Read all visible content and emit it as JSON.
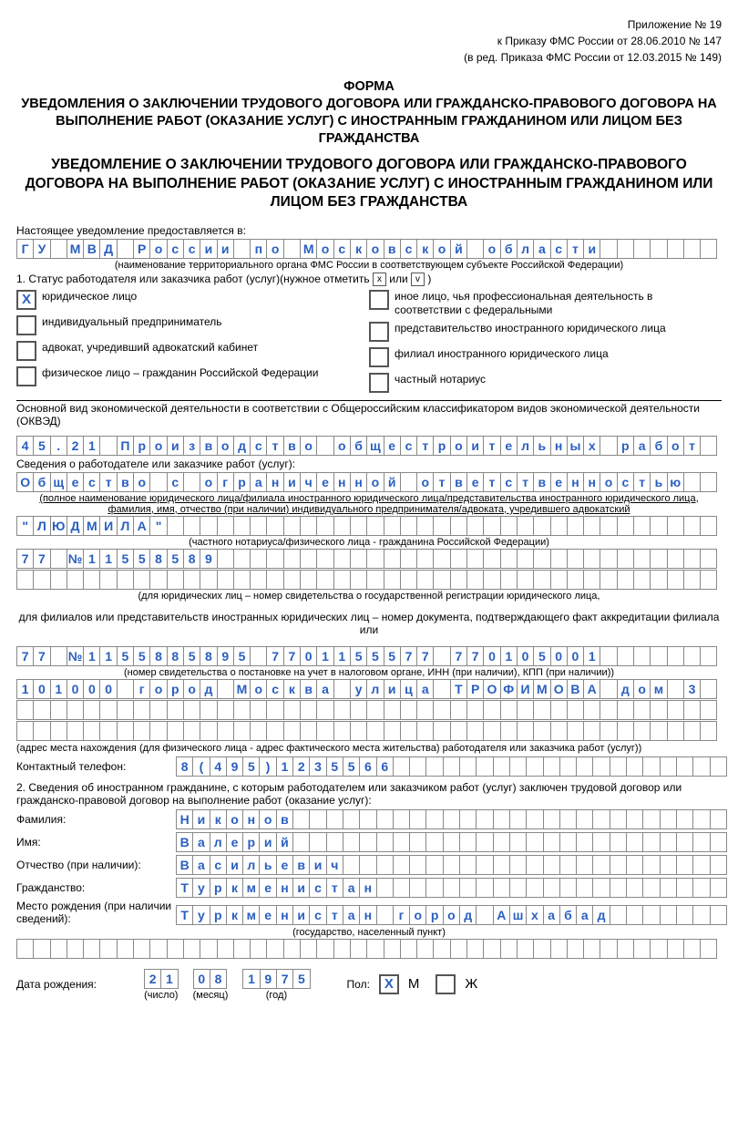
{
  "header": {
    "line1": "Приложение № 19",
    "line2": "к Приказу ФМС России от 28.06.2010 № 147",
    "line3": "(в ред. Приказа ФМС России от 12.03.2015 № 149)"
  },
  "title": {
    "line1": "ФОРМА",
    "line2": "УВЕДОМЛЕНИЯ О ЗАКЛЮЧЕНИИ ТРУДОВОГО ДОГОВОРА ИЛИ ГРАЖДАНСКО-ПРАВОВОГО ДОГОВОРА НА ВЫПОЛНЕНИЕ РАБОТ (ОКАЗАНИЕ УСЛУГ) С ИНОСТРАННЫМ ГРАЖДАНИНОМ ИЛИ ЛИЦОМ БЕЗ ГРАЖДАНСТВА"
  },
  "subtitle": "УВЕДОМЛЕНИЕ О ЗАКЛЮЧЕНИИ ТРУДОВОГО ДОГОВОРА ИЛИ ГРАЖДАНСКО-ПРАВОВОГО ДОГОВОРА НА ВЫПОЛНЕНИЕ РАБОТ (ОКАЗАНИЕ УСЛУГ) С ИНОСТРАННЫМ ГРАЖДАНИНОМ ИЛИ ЛИЦОМ БЕЗ ГРАЖДАНСТВА",
  "intro_label": "Настоящее уведомление предоставляется в:",
  "row_authority": "ГУ МВД России по Московской области",
  "note_authority": "(наименование территориального органа ФМС России в соответствующем субъекте Российской Федерации)",
  "status_prefix": "1. Статус работодателя или заказчика работ (услуг)(нужное отметить ",
  "status_x": "x",
  "status_mid": " или ",
  "status_v": "v",
  "status_suffix": " )",
  "status": {
    "left": [
      {
        "checked": "X",
        "text": "юридическое лицо"
      },
      {
        "checked": "",
        "text": "индивидуальный предприниматель"
      },
      {
        "checked": "",
        "text": "адвокат, учредивший адвокатский кабинет"
      },
      {
        "checked": "",
        "text": "физическое лицо – гражданин Российской Федерации"
      }
    ],
    "right": [
      {
        "checked": "",
        "text": "иное лицо, чья профессиональная деятельность в соответствии с федеральными"
      },
      {
        "checked": "",
        "text": "представительство иностранного юридического лица"
      },
      {
        "checked": "",
        "text": "филиал иностранного юридического лица"
      },
      {
        "checked": "",
        "text": "частный нотариус"
      }
    ]
  },
  "okved_label": "Основной вид экономической деятельности в соответствии с Общероссийским классификатором видов экономической деятельности (ОКВЭД)",
  "row_okved": "45.21 Производство общестроительных работ",
  "employer_label": "Сведения о работодателе или заказчике работ (услуг):",
  "row_employer1": "Общество с ограниченной ответственностью",
  "note_employer1": "(полное наименование юридического лица/филиала иностранного юридического лица/представительства иностранного юридического лица, фамилия, имя, отчество (при наличии) индивидуального предпринимателя/адвоката, учредившего адвокатский",
  "row_employer2": "\"ЛЮДМИЛА\"",
  "note_employer2": "(частного нотариуса/физического лица - гражданина Российской Федерации)",
  "row_regnum": "77 №11558589",
  "row_empty1": "",
  "note_reg": "(для юридических лиц – номер свидетельства о государственной регистрации юридического лица,",
  "note_filial": "для филиалов или представительств иностранных юридических лиц – номер документа, подтверждающего факт аккредитации филиала или",
  "row_inn": "77 №1155885895 7701155577 770105001",
  "note_inn": "(номер свидетельства о постановке на учет в налоговом органе, ИНН (при наличии), КПП (при наличии))",
  "row_addr1": "101000 город Москва улица ТРОФИМОВА дом 3",
  "row_addr2": "",
  "row_addr3": "",
  "note_addr": "(адрес места нахождения (для физического лица - адрес фактического места жительства) работодателя или заказчика работ (услуг))",
  "phone_label": "Контактный телефон:",
  "row_phone": "8(495)1235566",
  "section2_label": "2. Сведения об иностранном гражданине, с которым работодателем или заказчиком работ (услуг) заключен трудовой договор или гражданско-правовой договор на выполнение работ (оказание услуг):",
  "lastname_label": "Фамилия:",
  "row_lastname": "Никонов",
  "firstname_label": "Имя:",
  "row_firstname": "Валерий",
  "middlename_label": "Отчество (при наличии):",
  "row_middlename": "Васильевич",
  "citizenship_label": "Гражданство:",
  "row_citizenship": "Туркменистан",
  "birthplace_label": "Место рождения (при наличии сведений):",
  "row_birthplace": "Туркменистан город Ашхабад",
  "note_birthplace": "(государство, населенный пункт)",
  "row_birthplace2": "",
  "dob_label": "Дата рождения:",
  "dob_day": "21",
  "dob_month": "08",
  "dob_year": "1975",
  "dob_day_label": "(число)",
  "dob_month_label": "(месяц)",
  "dob_year_label": "(год)",
  "sex_label": "Пол:",
  "sex_m_checked": "X",
  "sex_m_label": "М",
  "sex_f_checked": "",
  "sex_f_label": "Ж",
  "cell_count": 42,
  "colors": {
    "fill": "#2a5fbf"
  }
}
